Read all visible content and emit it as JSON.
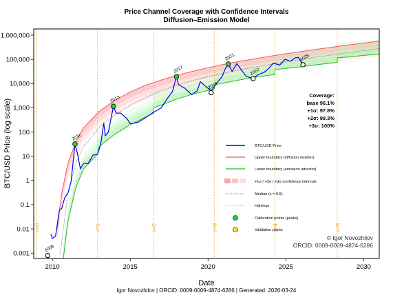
{
  "chart_data": {
    "type": "line",
    "title": "Price Channel Coverage with Confidence Intervals",
    "subtitle": "Diffusion–Emission Model",
    "xlabel": "Date",
    "ylabel": "BTC/USD Price (log scale)",
    "x_ticks": [
      "2010",
      "2015",
      "2020",
      "2025",
      "2030"
    ],
    "y_ticks": [
      "0.001",
      "0.01",
      "0.1",
      "1",
      "10",
      "100",
      "1,000",
      "10,000",
      "100,000",
      "1,000,000"
    ],
    "y_scale": "log",
    "xlim": [
      2008.8,
      2031.0
    ],
    "ylim": [
      0.0006,
      1800000
    ],
    "legend": {
      "placement": "lower-right",
      "entries": [
        "BTC/USD Price",
        "Upper boundary (diffusion repeller)",
        "Lower boundary (emission attractor)",
        "+1σ / +2σ / +3σ confidence intervals",
        "Median (z = 0.5)",
        "Halvings",
        "Calibration points (peaks)",
        "Validation points"
      ]
    },
    "coverage": {
      "heading": "Coverage:",
      "lines": [
        "base 96.1%",
        "+1σ: 97.8%",
        "+2σ: 99.3%",
        "+3σ:  100%"
      ]
    },
    "halving_lines": [
      {
        "x": 2009.0,
        "label": "n=0"
      },
      {
        "x": 2012.9,
        "label": "n=1"
      },
      {
        "x": 2016.5,
        "label": "n=2"
      },
      {
        "x": 2020.4,
        "label": "n=3"
      },
      {
        "x": 2024.3,
        "label": "n=4"
      },
      {
        "x": 2028.3,
        "label": "n=5"
      }
    ],
    "calibration_points": [
      {
        "label": "2011",
        "x": 2011.45,
        "y": 32
      },
      {
        "label": "2013",
        "x": 2013.92,
        "y": 1150
      },
      {
        "label": "2017",
        "x": 2017.97,
        "y": 19500
      },
      {
        "label": "2021",
        "x": 2021.3,
        "y": 64000
      }
    ],
    "validation_points": [
      {
        "label": "2009",
        "x": 2009.7,
        "y": 0.0008
      },
      {
        "label": "2019",
        "x": 2020.2,
        "y": 4200
      },
      {
        "label": "2022",
        "x": 2022.9,
        "y": 16000
      },
      {
        "label": "2025",
        "x": 2026.1,
        "y": 60000
      }
    ],
    "upper_boundary": [
      {
        "x": 2010.3,
        "y": 0.01
      },
      {
        "x": 2010.6,
        "y": 0.3
      },
      {
        "x": 2011.0,
        "y": 5
      },
      {
        "x": 2011.5,
        "y": 40
      },
      {
        "x": 2012.0,
        "y": 150
      },
      {
        "x": 2013.0,
        "y": 700
      },
      {
        "x": 2014.0,
        "y": 2000
      },
      {
        "x": 2015.0,
        "y": 4500
      },
      {
        "x": 2016.0,
        "y": 8500
      },
      {
        "x": 2017.0,
        "y": 14000
      },
      {
        "x": 2018.0,
        "y": 22000
      },
      {
        "x": 2019.0,
        "y": 32000
      },
      {
        "x": 2020.0,
        "y": 45000
      },
      {
        "x": 2021.0,
        "y": 62000
      },
      {
        "x": 2022.0,
        "y": 82000
      },
      {
        "x": 2023.0,
        "y": 105000
      },
      {
        "x": 2024.0,
        "y": 135000
      },
      {
        "x": 2025.0,
        "y": 170000
      },
      {
        "x": 2026.0,
        "y": 210000
      },
      {
        "x": 2027.0,
        "y": 260000
      },
      {
        "x": 2028.0,
        "y": 320000
      },
      {
        "x": 2029.0,
        "y": 390000
      },
      {
        "x": 2030.0,
        "y": 470000
      },
      {
        "x": 2031.0,
        "y": 560000
      }
    ],
    "median": [
      {
        "x": 2010.5,
        "y": 0.0009
      },
      {
        "x": 2011.0,
        "y": 0.3
      },
      {
        "x": 2011.5,
        "y": 5
      },
      {
        "x": 2012.0,
        "y": 25
      },
      {
        "x": 2013.0,
        "y": 150
      },
      {
        "x": 2014.0,
        "y": 500
      },
      {
        "x": 2015.0,
        "y": 1300
      },
      {
        "x": 2016.0,
        "y": 2700
      },
      {
        "x": 2017.0,
        "y": 5000
      },
      {
        "x": 2018.0,
        "y": 8500
      },
      {
        "x": 2019.0,
        "y": 13000
      },
      {
        "x": 2020.0,
        "y": 19000
      },
      {
        "x": 2021.0,
        "y": 27000
      },
      {
        "x": 2022.0,
        "y": 37000
      },
      {
        "x": 2023.0,
        "y": 48000
      },
      {
        "x": 2024.0,
        "y": 62000
      },
      {
        "x": 2025.0,
        "y": 80000
      },
      {
        "x": 2026.0,
        "y": 100000
      },
      {
        "x": 2027.0,
        "y": 125000
      },
      {
        "x": 2028.0,
        "y": 155000
      },
      {
        "x": 2029.0,
        "y": 190000
      },
      {
        "x": 2030.0,
        "y": 230000
      },
      {
        "x": 2031.0,
        "y": 280000
      }
    ],
    "lower_boundary": [
      {
        "x": 2010.7,
        "y": 0.0006
      },
      {
        "x": 2011.0,
        "y": 0.02
      },
      {
        "x": 2011.5,
        "y": 0.5
      },
      {
        "x": 2012.0,
        "y": 3
      },
      {
        "x": 2012.9,
        "y": 12
      },
      {
        "x": 2013.0,
        "y": 25
      },
      {
        "x": 2014.0,
        "y": 80
      },
      {
        "x": 2015.0,
        "y": 200
      },
      {
        "x": 2016.0,
        "y": 420
      },
      {
        "x": 2016.5,
        "y": 600
      },
      {
        "x": 2016.51,
        "y": 1000
      },
      {
        "x": 2017.0,
        "y": 1300
      },
      {
        "x": 2018.0,
        "y": 2300
      },
      {
        "x": 2019.0,
        "y": 3600
      },
      {
        "x": 2020.4,
        "y": 6000
      },
      {
        "x": 2020.41,
        "y": 9000
      },
      {
        "x": 2021.0,
        "y": 10500
      },
      {
        "x": 2022.0,
        "y": 14000
      },
      {
        "x": 2023.0,
        "y": 18000
      },
      {
        "x": 2024.3,
        "y": 24000
      },
      {
        "x": 2024.31,
        "y": 38000
      },
      {
        "x": 2025.0,
        "y": 42000
      },
      {
        "x": 2026.0,
        "y": 50000
      },
      {
        "x": 2027.0,
        "y": 60000
      },
      {
        "x": 2028.3,
        "y": 75000
      },
      {
        "x": 2028.31,
        "y": 115000
      },
      {
        "x": 2029.0,
        "y": 125000
      },
      {
        "x": 2030.0,
        "y": 145000
      },
      {
        "x": 2031.0,
        "y": 165000
      }
    ],
    "price": [
      {
        "x": 2009.9,
        "y": 0.006
      },
      {
        "x": 2010.0,
        "y": 0.004
      },
      {
        "x": 2010.2,
        "y": 0.005
      },
      {
        "x": 2010.45,
        "y": 0.06
      },
      {
        "x": 2010.6,
        "y": 0.07
      },
      {
        "x": 2010.8,
        "y": 0.2
      },
      {
        "x": 2011.0,
        "y": 0.3
      },
      {
        "x": 2011.2,
        "y": 0.9
      },
      {
        "x": 2011.35,
        "y": 8
      },
      {
        "x": 2011.45,
        "y": 31
      },
      {
        "x": 2011.6,
        "y": 14
      },
      {
        "x": 2011.8,
        "y": 3
      },
      {
        "x": 2012.0,
        "y": 5
      },
      {
        "x": 2012.3,
        "y": 5
      },
      {
        "x": 2012.6,
        "y": 11
      },
      {
        "x": 2012.9,
        "y": 12
      },
      {
        "x": 2013.1,
        "y": 30
      },
      {
        "x": 2013.3,
        "y": 230
      },
      {
        "x": 2013.4,
        "y": 70
      },
      {
        "x": 2013.6,
        "y": 100
      },
      {
        "x": 2013.92,
        "y": 1150
      },
      {
        "x": 2014.1,
        "y": 600
      },
      {
        "x": 2014.4,
        "y": 600
      },
      {
        "x": 2014.8,
        "y": 350
      },
      {
        "x": 2015.0,
        "y": 220
      },
      {
        "x": 2015.5,
        "y": 250
      },
      {
        "x": 2016.0,
        "y": 400
      },
      {
        "x": 2016.5,
        "y": 650
      },
      {
        "x": 2017.0,
        "y": 1000
      },
      {
        "x": 2017.4,
        "y": 2500
      },
      {
        "x": 2017.7,
        "y": 4500
      },
      {
        "x": 2017.97,
        "y": 19500
      },
      {
        "x": 2018.1,
        "y": 9000
      },
      {
        "x": 2018.5,
        "y": 6500
      },
      {
        "x": 2018.95,
        "y": 3500
      },
      {
        "x": 2019.3,
        "y": 5000
      },
      {
        "x": 2019.5,
        "y": 12000
      },
      {
        "x": 2019.9,
        "y": 7200
      },
      {
        "x": 2020.2,
        "y": 5000
      },
      {
        "x": 2020.5,
        "y": 9500
      },
      {
        "x": 2020.9,
        "y": 19000
      },
      {
        "x": 2021.1,
        "y": 40000
      },
      {
        "x": 2021.3,
        "y": 63000
      },
      {
        "x": 2021.55,
        "y": 32000
      },
      {
        "x": 2021.85,
        "y": 67000
      },
      {
        "x": 2022.1,
        "y": 40000
      },
      {
        "x": 2022.45,
        "y": 20000
      },
      {
        "x": 2022.9,
        "y": 16000
      },
      {
        "x": 2023.2,
        "y": 23000
      },
      {
        "x": 2023.6,
        "y": 29000
      },
      {
        "x": 2023.9,
        "y": 42000
      },
      {
        "x": 2024.2,
        "y": 70000
      },
      {
        "x": 2024.6,
        "y": 58000
      },
      {
        "x": 2024.95,
        "y": 100000
      },
      {
        "x": 2025.3,
        "y": 84000
      },
      {
        "x": 2025.6,
        "y": 115000
      },
      {
        "x": 2025.8,
        "y": 120000
      },
      {
        "x": 2026.0,
        "y": 75000
      },
      {
        "x": 2026.2,
        "y": 68000
      }
    ],
    "author_lines": [
      "© Igor Novozhilov",
      "ORCID: 0009-0009-4874-6286"
    ],
    "footer": "Igor Novozhilov | ORCID: 0009-0009-4874-6286 | Generated: 2026-03-24",
    "colors": {
      "price": "#0000ee",
      "upper": "#f05a5a",
      "lower": "#22bb22",
      "median": "#777777",
      "halving": "#f5a623",
      "upper_band": "#fbb4b4",
      "lower_band": "#b6f2b0",
      "calibration": "#22cc44",
      "validation": "#ffe033"
    }
  }
}
